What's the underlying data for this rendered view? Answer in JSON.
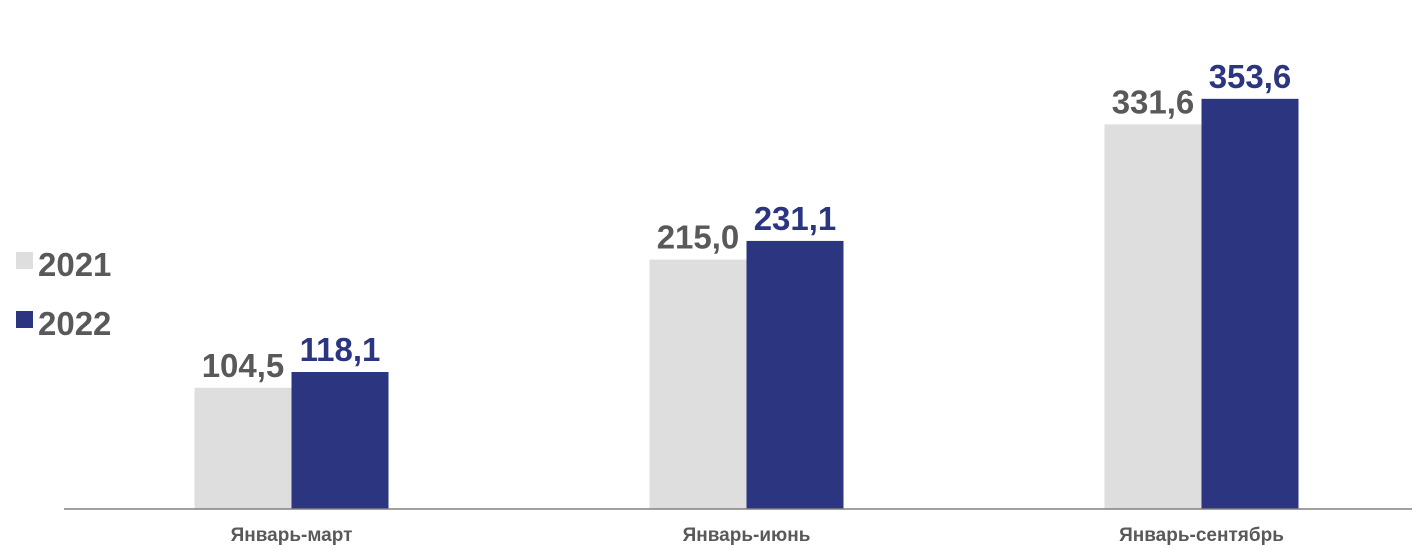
{
  "chart_data": {
    "type": "bar",
    "categories": [
      "Январь-март",
      "Январь-июнь",
      "Январь-сентябрь"
    ],
    "series": [
      {
        "name": "2021",
        "color": "#dedede",
        "label_color": "#595959",
        "values": [
          104.5,
          215.0,
          331.6
        ],
        "labels": [
          "104,5",
          "215,0",
          "331,6"
        ]
      },
      {
        "name": "2022",
        "color": "#2b3580",
        "label_color": "#2b3580",
        "values": [
          118.1,
          231.1,
          353.6
        ],
        "labels": [
          "118,1",
          "231,1",
          "353,6"
        ]
      }
    ],
    "ylim": [
      0,
      400
    ],
    "grid": false,
    "legend_position": "left",
    "category_label_color": "#595959",
    "axis_color": "#808080"
  }
}
